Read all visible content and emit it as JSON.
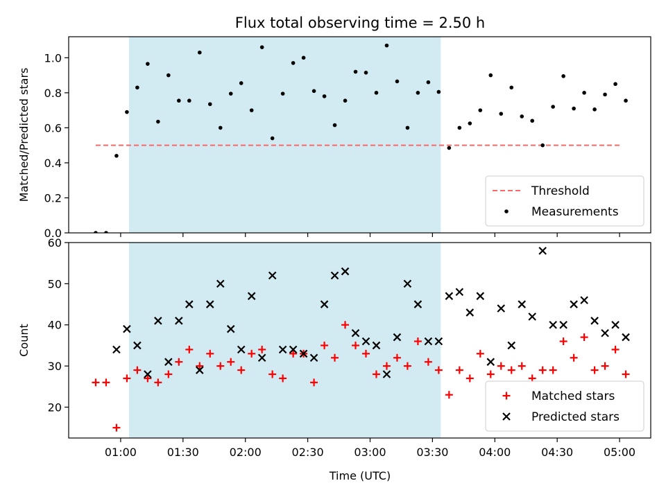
{
  "title": "Flux total observing time = 2.50 h",
  "colors": {
    "shade": "#add8e6",
    "threshold": "#ff6666",
    "measurement": "#000000",
    "matched": "#ff0000",
    "predicted": "#000000"
  },
  "x_ticks": [
    "01:00",
    "01:30",
    "02:00",
    "02:30",
    "03:00",
    "03:30",
    "04:00",
    "04:30",
    "05:00"
  ],
  "chart_data": [
    {
      "type": "scatter",
      "ylabel": "Matched/Predicted stars",
      "xlabel": "",
      "xlim_min": [
        35,
        315
      ],
      "ylim": [
        0,
        1.12
      ],
      "y_ticks": [
        "0.0",
        "0.2",
        "0.4",
        "0.6",
        "0.8",
        "1.0"
      ],
      "grid": false,
      "legend_placement": "lower-right",
      "shaded_x_min": [
        64,
        214
      ],
      "threshold": {
        "name": "Threshold",
        "y": 0.5,
        "x_min": [
          48,
          300
        ]
      },
      "series": [
        {
          "name": "Measurements",
          "marker": "dot",
          "x_min": [
            48,
            53,
            58,
            63,
            68,
            73,
            78,
            83,
            88,
            93,
            98,
            103,
            108,
            113,
            118,
            123,
            128,
            133,
            138,
            143,
            148,
            153,
            158,
            163,
            168,
            173,
            178,
            183,
            188,
            193,
            198,
            203,
            208,
            213,
            218,
            223,
            228,
            233,
            238,
            243,
            248,
            253,
            258,
            263,
            268,
            273,
            278,
            283,
            288,
            293,
            298,
            303
          ],
          "y": [
            0.0,
            0.0,
            0.44,
            0.69,
            0.83,
            0.965,
            0.635,
            0.9,
            0.755,
            0.755,
            1.03,
            0.735,
            0.6,
            0.795,
            0.855,
            0.7,
            1.06,
            0.54,
            0.795,
            0.97,
            1.0,
            0.81,
            0.78,
            0.615,
            0.755,
            0.92,
            0.915,
            0.8,
            1.07,
            0.865,
            0.6,
            0.8,
            0.86,
            0.805,
            0.485,
            0.6,
            0.625,
            0.7,
            0.9,
            0.68,
            0.83,
            0.665,
            0.64,
            0.5,
            0.72,
            0.895,
            0.71,
            0.8,
            0.705,
            0.79,
            0.85,
            0.755
          ]
        }
      ]
    },
    {
      "type": "scatter",
      "ylabel": "Count",
      "xlabel": "Time (UTC)",
      "xlim_min": [
        35,
        315
      ],
      "ylim": [
        12.5,
        60
      ],
      "y_ticks": [
        "20",
        "30",
        "40",
        "50",
        "60"
      ],
      "grid": false,
      "legend_placement": "lower-right",
      "shaded_x_min": [
        64,
        214
      ],
      "series": [
        {
          "name": "Matched stars",
          "marker": "plus",
          "x_min": [
            48,
            53,
            58,
            63,
            68,
            73,
            78,
            83,
            88,
            93,
            98,
            103,
            108,
            113,
            118,
            123,
            128,
            133,
            138,
            143,
            148,
            153,
            158,
            163,
            168,
            173,
            178,
            183,
            188,
            193,
            198,
            203,
            208,
            213,
            218,
            223,
            228,
            233,
            238,
            243,
            248,
            253,
            258,
            263,
            268,
            273,
            278,
            283,
            288,
            293,
            298,
            303
          ],
          "y": [
            26,
            26,
            15,
            27,
            29,
            27,
            26,
            28,
            31,
            34,
            30,
            33,
            30,
            31,
            29,
            33,
            34,
            28,
            27,
            33,
            33,
            26,
            35,
            32,
            40,
            35,
            33,
            28,
            30,
            32,
            30,
            36,
            31,
            29,
            23,
            29,
            27,
            33,
            28,
            30,
            29,
            30,
            27,
            29,
            29,
            36,
            32,
            37,
            29,
            30,
            34,
            28
          ]
        },
        {
          "name": "Predicted stars",
          "marker": "x",
          "x_min": [
            58,
            63,
            68,
            73,
            78,
            83,
            88,
            93,
            98,
            103,
            108,
            113,
            118,
            123,
            128,
            133,
            138,
            143,
            148,
            153,
            158,
            163,
            168,
            173,
            178,
            183,
            188,
            193,
            198,
            203,
            208,
            213,
            218,
            223,
            228,
            233,
            238,
            243,
            248,
            253,
            258,
            263,
            268,
            273,
            278,
            283,
            288,
            293,
            298,
            303
          ],
          "y": [
            34,
            39,
            35,
            28,
            41,
            31,
            41,
            45,
            29,
            45,
            50,
            39,
            34,
            47,
            32,
            52,
            34,
            34,
            33,
            32,
            45,
            52,
            53,
            38,
            36,
            35,
            28,
            37,
            50,
            45,
            36,
            36,
            47,
            48,
            43,
            47,
            31,
            44,
            35,
            45,
            42,
            58,
            40,
            40,
            45,
            46,
            41,
            38,
            40,
            37
          ]
        }
      ]
    }
  ]
}
